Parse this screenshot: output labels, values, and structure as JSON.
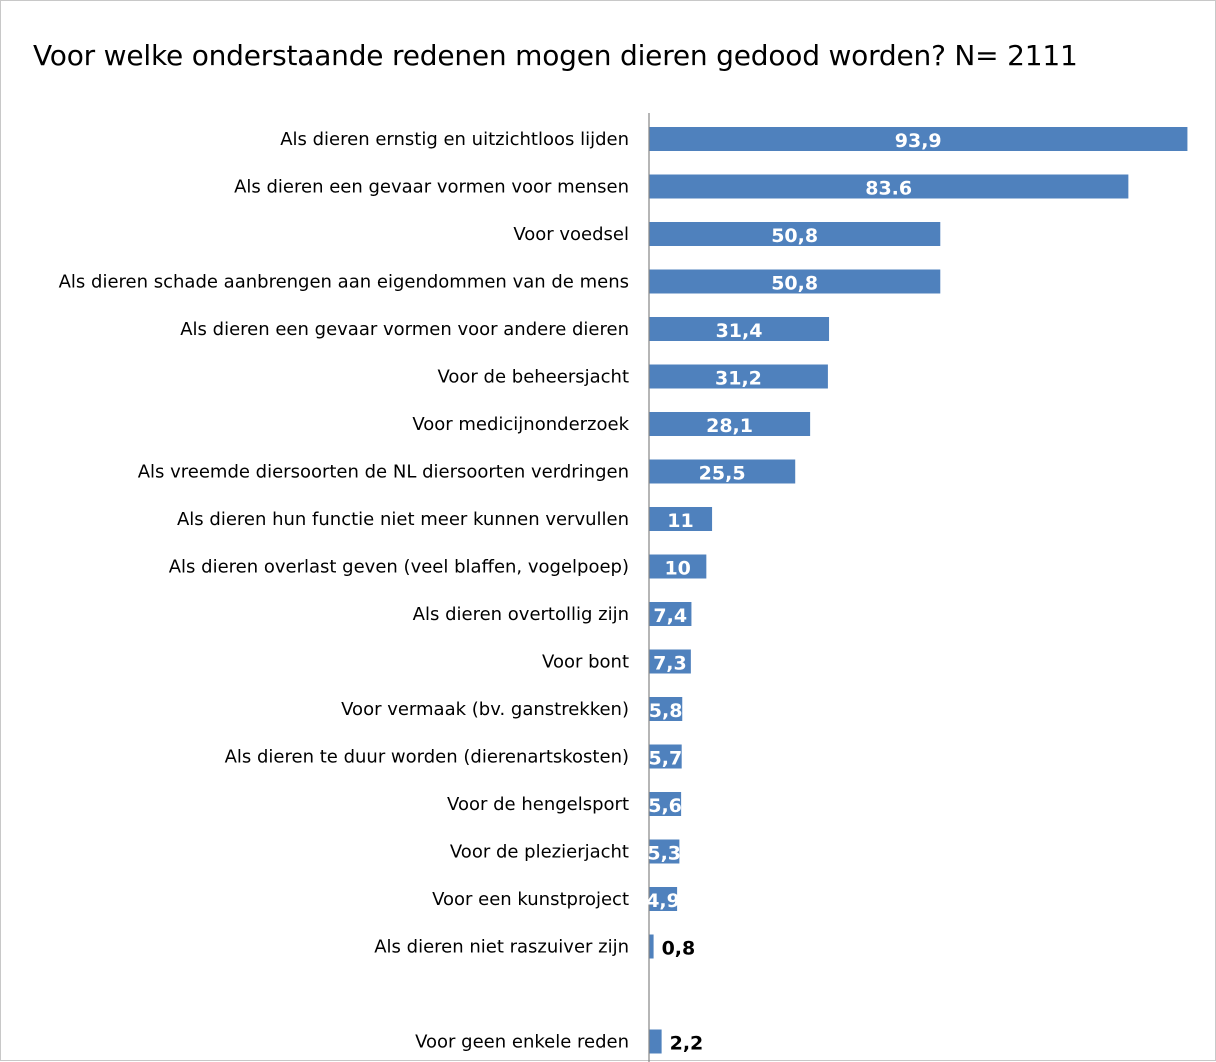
{
  "chart_data": {
    "type": "bar",
    "orientation": "horizontal",
    "title": "Voor welke onderstaande redenen mogen dieren gedood worden? N= 2111",
    "categories": [
      "Als dieren ernstig en uitzichtloos lijden",
      "Als dieren een gevaar vormen voor mensen",
      "Voor voedsel",
      "Als dieren schade aanbrengen aan eigendommen van de mens",
      "Als dieren een gevaar vormen voor andere dieren",
      "Voor de beheersjacht",
      "Voor medicijnonderzoek",
      "Als vreemde diersoorten de NL diersoorten verdringen",
      "Als dieren hun functie niet meer kunnen vervullen",
      "Als dieren overlast geven (veel blaffen, vogelpoep)",
      "Als dieren overtollig zijn",
      "Voor bont",
      "Voor vermaak (bv. ganstrekken)",
      "Als dieren te duur worden (dierenartskosten)",
      "Voor de hengelsport",
      "Voor de plezierjacht",
      "Voor een kunstproject",
      "Als dieren niet raszuiver zijn",
      "",
      "Voor geen enkele reden"
    ],
    "values": [
      93.9,
      83.6,
      50.8,
      50.8,
      31.4,
      31.2,
      28.1,
      25.5,
      11,
      10,
      7.4,
      7.3,
      5.8,
      5.7,
      5.6,
      5.3,
      4.9,
      0.8,
      null,
      2.2
    ],
    "value_labels": [
      "93,9",
      "83.6",
      "50,8",
      "50,8",
      "31,4",
      "31,2",
      "28,1",
      "25,5",
      "11",
      "10",
      "7,4",
      "7,3",
      "5,8",
      "5,7",
      "5,6",
      "5,3",
      "4,9",
      "0,8",
      "",
      "2,2"
    ],
    "xlim": [
      0,
      94
    ],
    "grid": false,
    "legend": "none",
    "bar_color": "#4f81bd",
    "axis_color": "#868686"
  }
}
